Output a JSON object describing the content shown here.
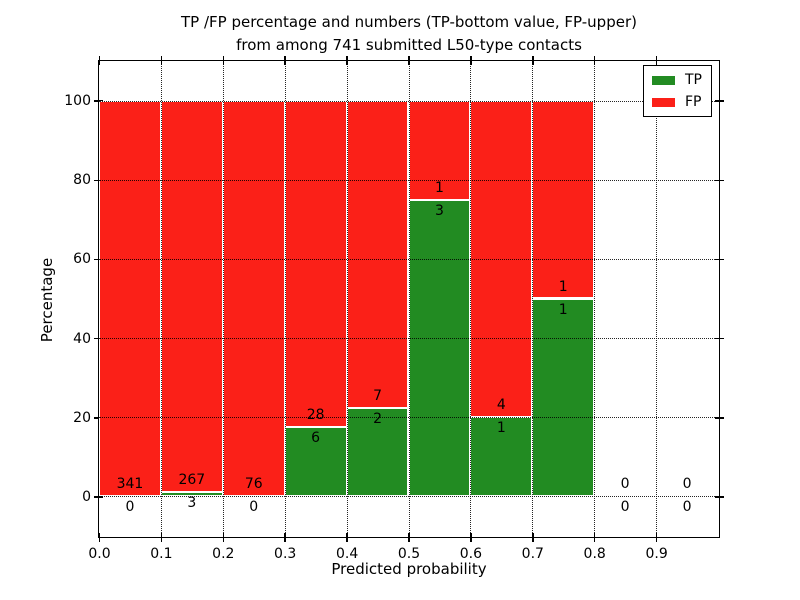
{
  "chart_data": {
    "type": "bar",
    "stacked": true,
    "title_lines": [
      "TP /FP percentage and numbers (TP-bottom value, FP-upper)",
      "from among 741 submitted L50-type contacts"
    ],
    "xlabel": "Predicted probability",
    "ylabel": "Percentage",
    "total_contacts": 741,
    "bin_edges": [
      0.0,
      0.1,
      0.2,
      0.3,
      0.4,
      0.5,
      0.6,
      0.7,
      0.8,
      0.9,
      1.0
    ],
    "categories": [
      "0.0-0.1",
      "0.1-0.2",
      "0.2-0.3",
      "0.3-0.4",
      "0.4-0.5",
      "0.5-0.6",
      "0.6-0.7",
      "0.7-0.8",
      "0.8-0.9",
      "0.9-1.0"
    ],
    "series": [
      {
        "name": "TP",
        "color": "#228b22",
        "values": [
          0,
          3,
          0,
          6,
          2,
          3,
          1,
          1,
          0,
          0
        ]
      },
      {
        "name": "FP",
        "color": "#fb2018",
        "values": [
          341,
          267,
          76,
          28,
          7,
          1,
          4,
          1,
          0,
          0
        ]
      }
    ],
    "tp_percent_by_bin": [
      0.0,
      1.1,
      0.0,
      17.6,
      22.2,
      75.0,
      20.0,
      50.0,
      null,
      null
    ],
    "bar_total_percent": 100,
    "xticks": [
      "0.0",
      "0.1",
      "0.2",
      "0.3",
      "0.4",
      "0.5",
      "0.6",
      "0.7",
      "0.8",
      "0.9"
    ],
    "yticks": [
      0,
      20,
      40,
      60,
      80,
      100
    ],
    "xlim": [
      0.0,
      1.0
    ],
    "ylim": [
      -10,
      110
    ],
    "grid": {
      "style": "dotted",
      "color": "#000000",
      "on": true
    },
    "legend": {
      "position": "upper right",
      "items": [
        "TP",
        "FP"
      ]
    },
    "bar_edge_color": "#ffffff",
    "axes_color": "#000000"
  }
}
